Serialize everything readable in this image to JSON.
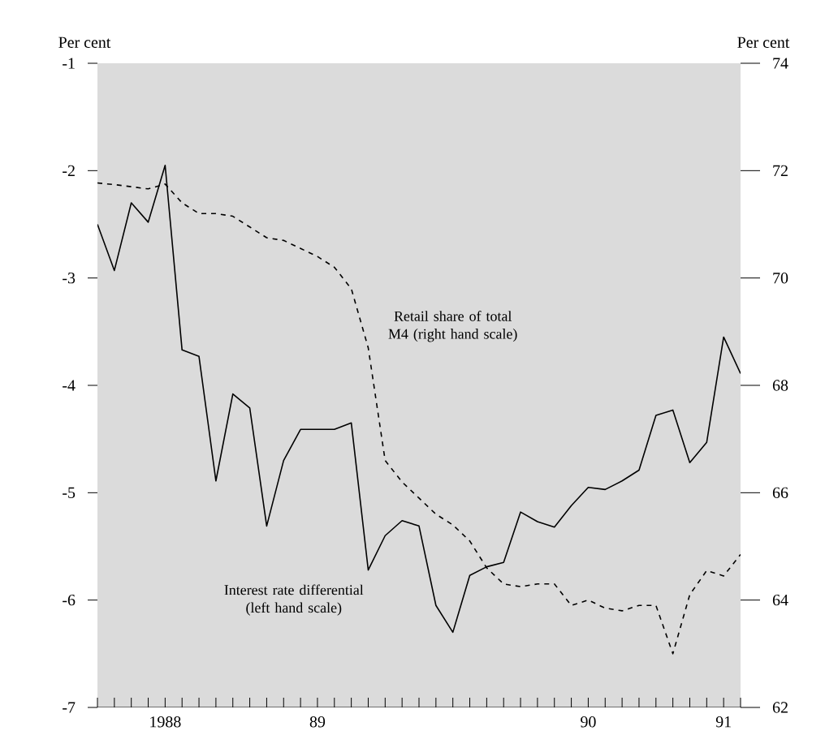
{
  "chart_data": {
    "type": "line",
    "categories": [
      null,
      null,
      null,
      null,
      "1988",
      null,
      null,
      null,
      null,
      null,
      null,
      null,
      null,
      "89",
      null,
      null,
      null,
      null,
      null,
      null,
      null,
      null,
      null,
      null,
      null,
      null,
      null,
      null,
      null,
      "90",
      null,
      null,
      null,
      null,
      null,
      null,
      null,
      "91",
      null
    ],
    "series": [
      {
        "name": "Interest rate differential (left hand scale)",
        "color": "#000000",
        "line_style": "solid",
        "values": [
          -2.5,
          -2.93,
          -2.3,
          -2.48,
          -1.95,
          -3.67,
          -3.73,
          -4.89,
          -4.08,
          -4.21,
          -5.31,
          -4.7,
          -4.41,
          -4.41,
          -4.41,
          -4.35,
          -5.72,
          -5.4,
          -5.26,
          -5.31,
          -6.05,
          -6.3,
          -5.77,
          -5.69,
          -5.65,
          -5.18,
          -5.27,
          -5.32,
          -5.12,
          -4.95,
          -4.97,
          -4.89,
          -4.79,
          -4.28,
          -4.23,
          -4.72,
          -4.53,
          -3.55,
          -3.89
        ]
      },
      {
        "name": "Retail share of total M4 (right hand scale)",
        "color": "#000000",
        "line_style": "dashed",
        "axis": "y2",
        "values": [
          71.77,
          71.74,
          71.7,
          71.66,
          71.75,
          71.4,
          71.2,
          71.2,
          71.15,
          70.95,
          70.75,
          70.7,
          70.55,
          70.4,
          70.2,
          69.8,
          68.7,
          66.6,
          66.2,
          65.9,
          65.6,
          65.4,
          65.1,
          64.6,
          64.3,
          64.25,
          64.3,
          64.3,
          63.9,
          64.0,
          63.85,
          63.8,
          63.9,
          63.9,
          63.0,
          64.1,
          64.55,
          64.45,
          64.85
        ]
      }
    ],
    "ylabel": "Per cent",
    "y2label": "Per cent",
    "ylim": [
      -7,
      -1
    ],
    "yticks": [
      -7,
      -6,
      -5,
      -4,
      -3,
      -2,
      -1
    ],
    "y2lim": [
      62,
      74
    ],
    "y2ticks": [
      62,
      64,
      66,
      68,
      70,
      72,
      74
    ],
    "grid": false,
    "marker": "none"
  }
}
